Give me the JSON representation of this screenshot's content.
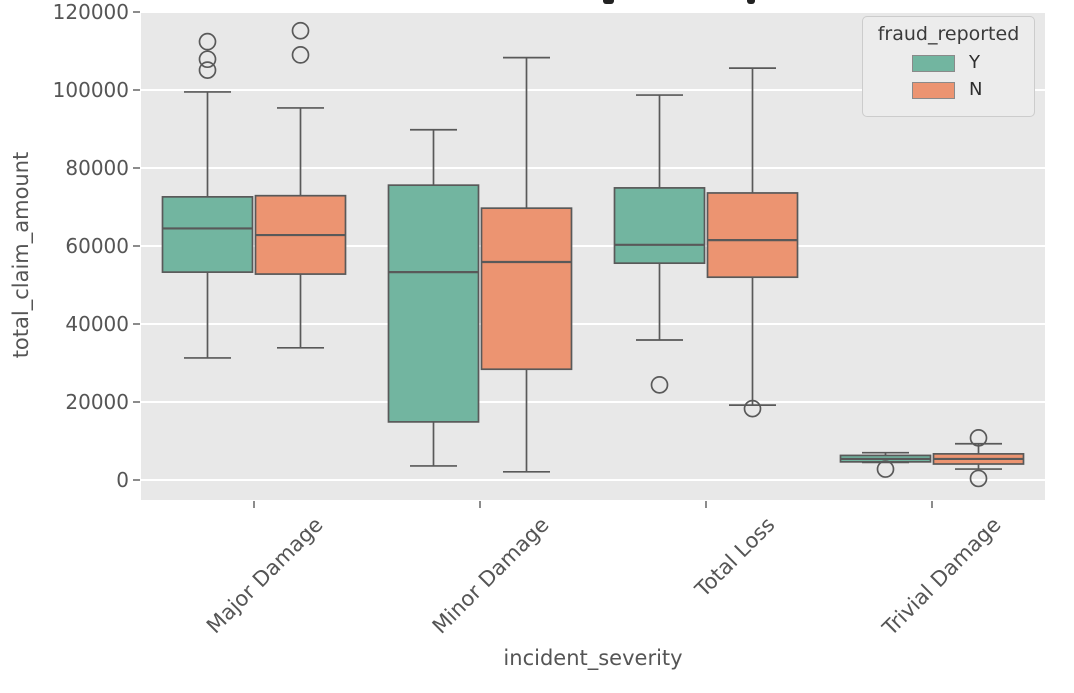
{
  "figure": {
    "title_cropped_at_top": true
  },
  "chart_data": {
    "type": "boxplot",
    "grouping": "grouped (hue dodge)",
    "xlabel": "incident_severity",
    "ylabel": "total_claim_amount",
    "categories": [
      "Major Damage",
      "Minor Damage",
      "Total Loss",
      "Trivial Damage"
    ],
    "yticks": [
      0,
      20000,
      40000,
      60000,
      80000,
      100000,
      120000
    ],
    "ylim": [
      -5100,
      121500
    ],
    "grid": "horizontal white lines on light-gray panel",
    "panel_color": "#e8e8e8",
    "line_color": "#595959",
    "text_color": "#555555",
    "legend": {
      "title": "fraud_reported",
      "position": "upper right",
      "entries": [
        {
          "label": "Y",
          "color": "#72b5a0"
        },
        {
          "label": "N",
          "color": "#ec9471"
        }
      ]
    },
    "series": [
      {
        "name": "Y",
        "color": "#72b5a0",
        "stats": [
          {
            "category": "Major Damage",
            "whislo": 31300,
            "q1": 53300,
            "med": 64500,
            "q3": 72600,
            "whishi": 99500,
            "fliers": [
              105100,
              107900,
              112400
            ]
          },
          {
            "category": "Minor Damage",
            "whislo": 3600,
            "q1": 14900,
            "med": 53300,
            "q3": 75600,
            "whishi": 89800,
            "fliers": []
          },
          {
            "category": "Total Loss",
            "whislo": 35900,
            "q1": 55600,
            "med": 60300,
            "q3": 74900,
            "whishi": 98700,
            "fliers": [
              24400
            ]
          },
          {
            "category": "Trivial Damage",
            "whislo": 4500,
            "q1": 4650,
            "med": 5400,
            "q3": 6300,
            "whishi": 7000,
            "fliers": [
              2800
            ]
          }
        ]
      },
      {
        "name": "N",
        "color": "#ec9471",
        "stats": [
          {
            "category": "Major Damage",
            "whislo": 33900,
            "q1": 52800,
            "med": 62800,
            "q3": 72900,
            "whishi": 95400,
            "fliers": [
              109000,
              115200
            ]
          },
          {
            "category": "Minor Damage",
            "whislo": 2100,
            "q1": 28400,
            "med": 55900,
            "q3": 69700,
            "whishi": 108300,
            "fliers": []
          },
          {
            "category": "Total Loss",
            "whislo": 19200,
            "q1": 52000,
            "med": 61500,
            "q3": 73600,
            "whishi": 105600,
            "fliers": [
              18300
            ]
          },
          {
            "category": "Trivial Damage",
            "whislo": 2800,
            "q1": 4100,
            "med": 5400,
            "q3": 6700,
            "whishi": 9300,
            "fliers": [
              10800,
              400
            ]
          }
        ]
      }
    ]
  }
}
